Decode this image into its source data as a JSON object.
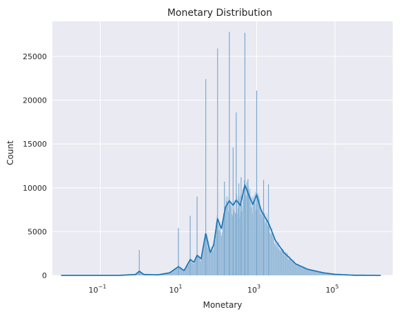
{
  "chart_data": {
    "type": "histogram",
    "title": "Monetary Distribution",
    "xlabel": "Monetary",
    "ylabel": "Count",
    "xscale": "log",
    "xlim": [
      0.006,
      3000000
    ],
    "ylim": [
      0,
      29000
    ],
    "x_ticks": [
      {
        "value": 0.1,
        "base": "10",
        "exp": "−1"
      },
      {
        "value": 10,
        "base": "10",
        "exp": "1"
      },
      {
        "value": 1000,
        "base": "10",
        "exp": "3"
      },
      {
        "value": 100000,
        "base": "10",
        "exp": "5"
      }
    ],
    "y_ticks": [
      0,
      5000,
      10000,
      15000,
      20000,
      25000
    ],
    "grid": true,
    "style": "seaborn-darkgrid",
    "colors": {
      "background": "#eaeaf2",
      "grid": "#ffffff",
      "bars": "#92b8d8",
      "kde_line": "#1f77b4"
    },
    "spikes": [
      {
        "x": 1,
        "count": 2900
      },
      {
        "x": 10,
        "count": 5400
      },
      {
        "x": 20,
        "count": 6800
      },
      {
        "x": 30,
        "count": 9000
      },
      {
        "x": 50,
        "count": 22400
      },
      {
        "x": 100,
        "count": 25900
      },
      {
        "x": 150,
        "count": 10700
      },
      {
        "x": 200,
        "count": 27800
      },
      {
        "x": 250,
        "count": 14600
      },
      {
        "x": 300,
        "count": 18600
      },
      {
        "x": 350,
        "count": 10500
      },
      {
        "x": 400,
        "count": 11200
      },
      {
        "x": 500,
        "count": 27700
      },
      {
        "x": 600,
        "count": 11000
      },
      {
        "x": 1000,
        "count": 21100
      },
      {
        "x": 1500,
        "count": 10900
      },
      {
        "x": 2000,
        "count": 10400
      }
    ],
    "kde": [
      {
        "x": 0.01,
        "y": 0
      },
      {
        "x": 0.3,
        "y": 0
      },
      {
        "x": 0.8,
        "y": 100
      },
      {
        "x": 1.0,
        "y": 480
      },
      {
        "x": 1.3,
        "y": 100
      },
      {
        "x": 3,
        "y": 60
      },
      {
        "x": 6,
        "y": 300
      },
      {
        "x": 10,
        "y": 1000
      },
      {
        "x": 14,
        "y": 550
      },
      {
        "x": 20,
        "y": 1800
      },
      {
        "x": 25,
        "y": 1500
      },
      {
        "x": 30,
        "y": 2300
      },
      {
        "x": 38,
        "y": 1900
      },
      {
        "x": 50,
        "y": 4800
      },
      {
        "x": 65,
        "y": 2600
      },
      {
        "x": 80,
        "y": 3500
      },
      {
        "x": 100,
        "y": 6500
      },
      {
        "x": 125,
        "y": 5300
      },
      {
        "x": 160,
        "y": 7800
      },
      {
        "x": 200,
        "y": 8500
      },
      {
        "x": 250,
        "y": 8000
      },
      {
        "x": 300,
        "y": 8600
      },
      {
        "x": 380,
        "y": 8000
      },
      {
        "x": 500,
        "y": 10300
      },
      {
        "x": 650,
        "y": 9000
      },
      {
        "x": 800,
        "y": 8100
      },
      {
        "x": 1000,
        "y": 9200
      },
      {
        "x": 1300,
        "y": 7400
      },
      {
        "x": 2000,
        "y": 6000
      },
      {
        "x": 3000,
        "y": 4000
      },
      {
        "x": 5000,
        "y": 2600
      },
      {
        "x": 10000,
        "y": 1300
      },
      {
        "x": 20000,
        "y": 700
      },
      {
        "x": 50000,
        "y": 300
      },
      {
        "x": 100000,
        "y": 120
      },
      {
        "x": 300000,
        "y": 20
      },
      {
        "x": 1500000,
        "y": 0
      }
    ]
  }
}
